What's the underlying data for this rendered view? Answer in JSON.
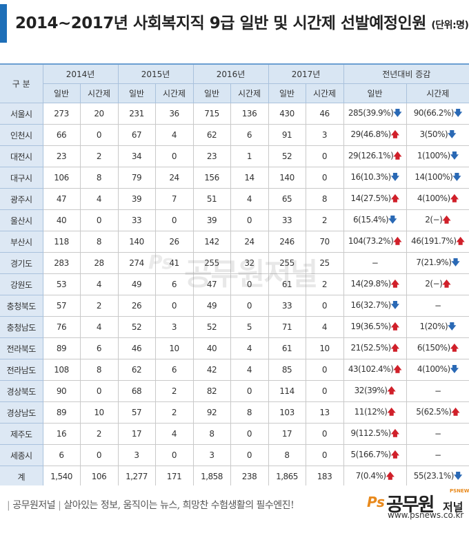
{
  "title": {
    "main": "2014~2017년 사회복지직 9급 일반 및 시간제 선발예정인원",
    "unit": "(단위:명)"
  },
  "table": {
    "label_header": "구 분",
    "group_headers": [
      "2014년",
      "2015년",
      "2016년",
      "2017년",
      "전년대비 증감"
    ],
    "sub_headers": [
      "일반",
      "시간제",
      "일반",
      "시간제",
      "일반",
      "시간제",
      "일반",
      "시간제",
      "일반",
      "시간제"
    ],
    "rows": [
      {
        "region": "서울시",
        "v": [
          "273",
          "20",
          "231",
          "36",
          "715",
          "136",
          "430",
          "46"
        ],
        "d_gen": "285(39.9%)",
        "d_gen_dir": "down",
        "d_part": "90(66.2%)",
        "d_part_dir": "down"
      },
      {
        "region": "인천시",
        "v": [
          "66",
          "0",
          "67",
          "4",
          "62",
          "6",
          "91",
          "3"
        ],
        "d_gen": "29(46.8%)",
        "d_gen_dir": "up",
        "d_part": "3(50%)",
        "d_part_dir": "down"
      },
      {
        "region": "대전시",
        "v": [
          "23",
          "2",
          "34",
          "0",
          "23",
          "1",
          "52",
          "0"
        ],
        "d_gen": "29(126.1%)",
        "d_gen_dir": "up",
        "d_part": "1(100%)",
        "d_part_dir": "down"
      },
      {
        "region": "대구시",
        "v": [
          "106",
          "8",
          "79",
          "24",
          "156",
          "14",
          "140",
          "0"
        ],
        "d_gen": "16(10.3%)",
        "d_gen_dir": "down",
        "d_part": "14(100%)",
        "d_part_dir": "down"
      },
      {
        "region": "광주시",
        "v": [
          "47",
          "4",
          "39",
          "7",
          "51",
          "4",
          "65",
          "8"
        ],
        "d_gen": "14(27.5%)",
        "d_gen_dir": "up",
        "d_part": "4(100%)",
        "d_part_dir": "up"
      },
      {
        "region": "울산시",
        "v": [
          "40",
          "0",
          "33",
          "0",
          "39",
          "0",
          "33",
          "2"
        ],
        "d_gen": "6(15.4%)",
        "d_gen_dir": "down",
        "d_part": "2(−)",
        "d_part_dir": "up"
      },
      {
        "region": "부산시",
        "v": [
          "118",
          "8",
          "140",
          "26",
          "142",
          "24",
          "246",
          "70"
        ],
        "d_gen": "104(73.2%)",
        "d_gen_dir": "up",
        "d_part": "46(191.7%)",
        "d_part_dir": "up"
      },
      {
        "region": "경기도",
        "v": [
          "283",
          "28",
          "274",
          "41",
          "255",
          "32",
          "255",
          "25"
        ],
        "d_gen": "−",
        "d_gen_dir": "",
        "d_part": "7(21.9%)",
        "d_part_dir": "down"
      },
      {
        "region": "강원도",
        "v": [
          "53",
          "4",
          "49",
          "6",
          "47",
          "0",
          "61",
          "2"
        ],
        "d_gen": "14(29.8%)",
        "d_gen_dir": "up",
        "d_part": "2(−)",
        "d_part_dir": "up"
      },
      {
        "region": "충청북도",
        "v": [
          "57",
          "2",
          "26",
          "0",
          "49",
          "0",
          "33",
          "0"
        ],
        "d_gen": "16(32.7%)",
        "d_gen_dir": "down",
        "d_part": "−",
        "d_part_dir": ""
      },
      {
        "region": "충청남도",
        "v": [
          "76",
          "4",
          "52",
          "3",
          "52",
          "5",
          "71",
          "4"
        ],
        "d_gen": "19(36.5%)",
        "d_gen_dir": "up",
        "d_part": "1(20%)",
        "d_part_dir": "down"
      },
      {
        "region": "전라북도",
        "v": [
          "89",
          "6",
          "46",
          "10",
          "40",
          "4",
          "61",
          "10"
        ],
        "d_gen": "21(52.5%)",
        "d_gen_dir": "up",
        "d_part": "6(150%)",
        "d_part_dir": "up"
      },
      {
        "region": "전라남도",
        "v": [
          "108",
          "8",
          "62",
          "6",
          "42",
          "4",
          "85",
          "0"
        ],
        "d_gen": "43(102.4%)",
        "d_gen_dir": "up",
        "d_part": "4(100%)",
        "d_part_dir": "down"
      },
      {
        "region": "경상북도",
        "v": [
          "90",
          "0",
          "68",
          "2",
          "82",
          "0",
          "114",
          "0"
        ],
        "d_gen": "32(39%)",
        "d_gen_dir": "up",
        "d_part": "−",
        "d_part_dir": ""
      },
      {
        "region": "경상남도",
        "v": [
          "89",
          "10",
          "57",
          "2",
          "92",
          "8",
          "103",
          "13"
        ],
        "d_gen": "11(12%)",
        "d_gen_dir": "up",
        "d_part": "5(62.5%)",
        "d_part_dir": "up"
      },
      {
        "region": "제주도",
        "v": [
          "16",
          "2",
          "17",
          "4",
          "8",
          "0",
          "17",
          "0"
        ],
        "d_gen": "9(112.5%)",
        "d_gen_dir": "up",
        "d_part": "−",
        "d_part_dir": ""
      },
      {
        "region": "세종시",
        "v": [
          "6",
          "0",
          "3",
          "0",
          "3",
          "0",
          "8",
          "0"
        ],
        "d_gen": "5(166.7%)",
        "d_gen_dir": "up",
        "d_part": "−",
        "d_part_dir": ""
      },
      {
        "region": "계",
        "v": [
          "1,540",
          "106",
          "1,277",
          "171",
          "1,858",
          "238",
          "1,865",
          "183"
        ],
        "d_gen": "7(0.4%)",
        "d_gen_dir": "up",
        "d_part": "55(23.1%)",
        "d_part_dir": "down"
      }
    ]
  },
  "arrows": {
    "up": "🡅",
    "down": "🡇",
    "up_color": "#d0202a",
    "down_color": "#2a69b5"
  },
  "watermark": {
    "ps": "Ps",
    "text": "공무원저널"
  },
  "footer": {
    "brand": "공무원저널",
    "tagline": "살아있는 정보, 움직이는 뉴스, 희망찬 수험생활의 필수엔진!",
    "logo_ps": "Ps",
    "logo_main": "공무원",
    "logo_sub": "저널",
    "logo_small": "PSNEWS",
    "url": "www.psnews.co.kr"
  },
  "colors": {
    "accent": "#1e6fb8",
    "header_bg": "#d9e6f3",
    "logo_orange": "#e8891c"
  }
}
